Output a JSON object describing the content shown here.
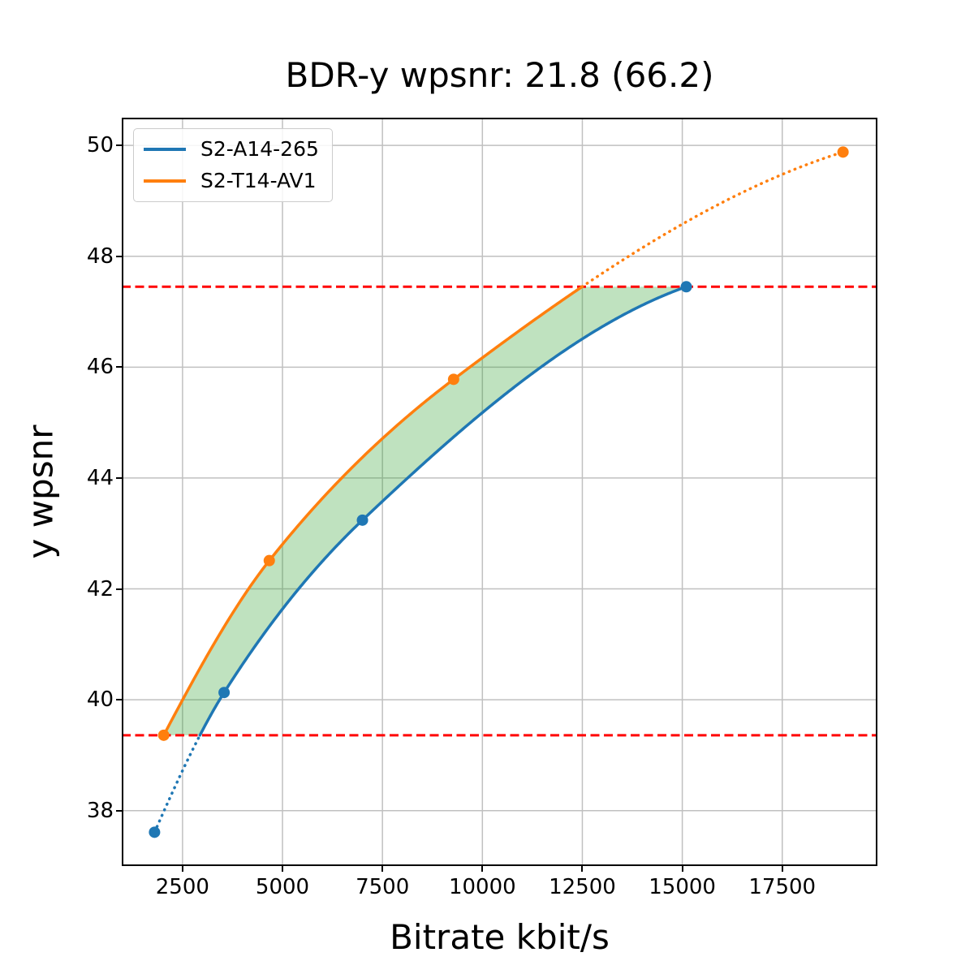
{
  "chart_data": {
    "type": "line",
    "title": "BDR-y wpsnr: 21.8 (66.2)",
    "xlabel": "Bitrate kbit/s",
    "ylabel": "y wpsnr",
    "xlim": [
      980,
      19880
    ],
    "ylim": [
      37.0,
      50.5
    ],
    "xticks": [
      2500,
      5000,
      7500,
      10000,
      12500,
      15000,
      17500
    ],
    "yticks": [
      38,
      40,
      42,
      44,
      46,
      48,
      50
    ],
    "grid": true,
    "grid_color": "#c0c0c0",
    "spine_color": "#000000",
    "legend": {
      "position": "upper-left",
      "entries": [
        "S2-A14-265",
        "S2-T14-AV1"
      ]
    },
    "series": [
      {
        "name": "S2-A14-265",
        "color": "#1f77b4",
        "marker": "o",
        "points": [
          [
            1800,
            37.61
          ],
          [
            3540,
            40.13
          ],
          [
            7000,
            43.24
          ],
          [
            15100,
            47.45
          ]
        ]
      },
      {
        "name": "S2-T14-AV1",
        "color": "#ff7f0e",
        "marker": "o",
        "points": [
          [
            2030,
            39.36
          ],
          [
            4670,
            42.51
          ],
          [
            9280,
            45.78
          ],
          [
            19020,
            49.88
          ]
        ]
      }
    ],
    "overlap_interval": [
      39.36,
      47.45
    ],
    "hlines": {
      "values": [
        39.36,
        47.45
      ],
      "color": "#ff0000",
      "style": "dashed"
    },
    "shaded_region": {
      "between": [
        "S2-T14-AV1",
        "S2-A14-265"
      ],
      "y_range": [
        39.36,
        47.45
      ],
      "color": "#2ca02c",
      "alpha": 0.3
    }
  }
}
